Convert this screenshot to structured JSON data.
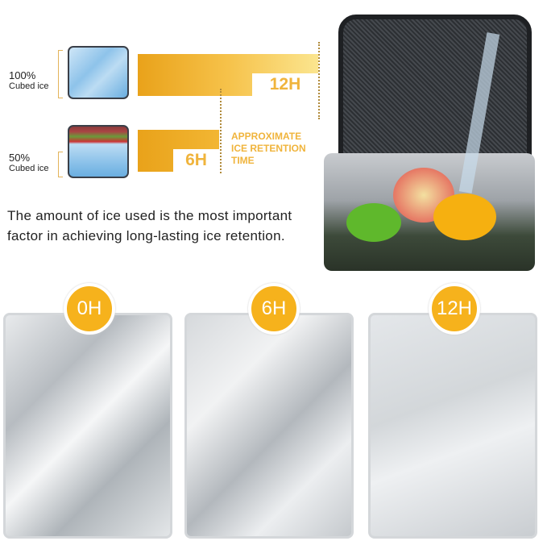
{
  "chart": {
    "rows": [
      {
        "percent": "100%",
        "label": "Cubed ice",
        "hours": "12H"
      },
      {
        "percent": "50%",
        "label": "Cubed ice",
        "hours": "6H"
      }
    ],
    "legend": "APPROXIMATE ICE RETENTION TIME"
  },
  "description": "The amount of ice used is the most important factor in achieving long-lasting ice retention.",
  "panels": [
    {
      "badge": "0H"
    },
    {
      "badge": "6H"
    },
    {
      "badge": "12H"
    }
  ],
  "colors": {
    "accent": "#f6b21c",
    "panel_border": "#d4d7da"
  }
}
